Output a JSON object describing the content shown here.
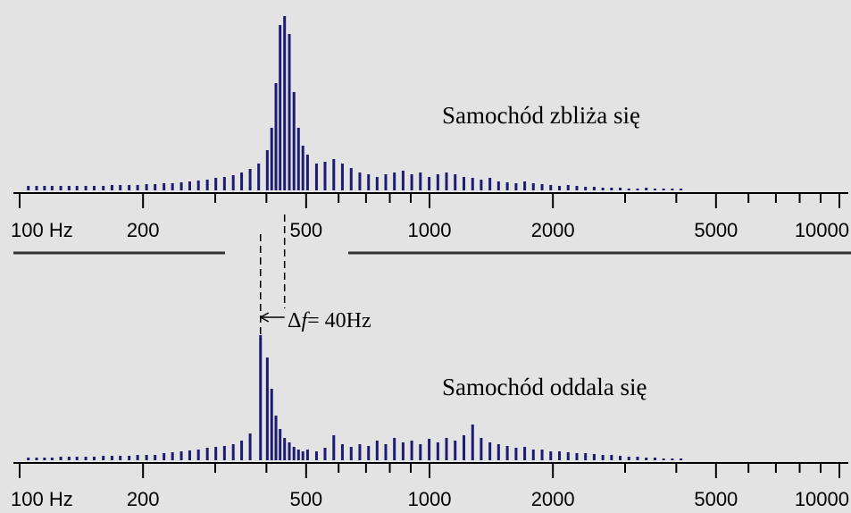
{
  "chart_data": [
    {
      "type": "bar",
      "title": "Samochód zbliża się",
      "color": "#1c1c72",
      "xscale": "log",
      "xlim": [
        100,
        10000
      ],
      "ylim": [
        0,
        200
      ],
      "xticks": [
        {
          "value": 100,
          "label": "100 Hz"
        },
        200,
        500,
        1000,
        2000,
        5000,
        10000
      ],
      "xminorticks": [
        300,
        400,
        600,
        700,
        800,
        900,
        3000,
        4000,
        6000,
        7000,
        8000,
        9000
      ],
      "x": [
        105,
        110,
        115,
        120,
        126,
        132,
        138,
        145,
        152,
        160,
        168,
        176,
        185,
        194,
        204,
        214,
        225,
        236,
        248,
        260,
        273,
        287,
        301,
        316,
        332,
        348,
        365,
        383,
        402,
        412,
        422,
        432,
        443,
        455,
        467,
        479,
        491,
        504,
        530,
        556,
        584,
        613,
        644,
        676,
        710,
        745,
        782,
        821,
        862,
        905,
        950,
        998,
        1048,
        1100,
        1155,
        1213,
        1274,
        1337,
        1404,
        1474,
        1548,
        1626,
        1707,
        1792,
        1882,
        1976,
        2075,
        2179,
        2288,
        2402,
        2522,
        2648,
        2780,
        2919,
        3065,
        3218,
        3379,
        3548,
        3725,
        3911,
        4107
      ],
      "values": [
        5,
        5,
        5,
        5,
        5,
        5,
        5,
        5,
        5,
        5,
        6,
        6,
        6,
        6,
        7,
        7,
        8,
        8,
        9,
        10,
        11,
        12,
        14,
        15,
        17,
        20,
        24,
        30,
        45,
        70,
        120,
        185,
        195,
        175,
        110,
        70,
        50,
        40,
        30,
        32,
        35,
        30,
        25,
        20,
        18,
        15,
        18,
        20,
        22,
        18,
        20,
        15,
        18,
        20,
        18,
        15,
        14,
        12,
        14,
        10,
        9,
        8,
        10,
        8,
        7,
        6,
        5,
        6,
        5,
        4,
        4,
        3,
        3,
        3,
        2,
        2,
        3,
        2,
        2,
        2,
        2
      ]
    },
    {
      "type": "bar",
      "title": "Samochód oddala się",
      "color": "#1c1c72",
      "xscale": "log",
      "xlim": [
        100,
        10000
      ],
      "ylim": [
        0,
        200
      ],
      "xticks": [
        {
          "value": 100,
          "label": "100 Hz"
        },
        200,
        500,
        1000,
        2000,
        5000,
        10000
      ],
      "xminorticks": [
        300,
        400,
        600,
        700,
        800,
        900,
        3000,
        4000,
        6000,
        7000,
        8000,
        9000
      ],
      "x": [
        105,
        110,
        115,
        120,
        126,
        132,
        138,
        145,
        152,
        160,
        168,
        176,
        185,
        194,
        204,
        214,
        225,
        236,
        248,
        260,
        273,
        287,
        301,
        316,
        332,
        348,
        365,
        387,
        402,
        412,
        422,
        432,
        443,
        455,
        467,
        479,
        491,
        504,
        530,
        556,
        584,
        613,
        644,
        676,
        710,
        745,
        782,
        821,
        862,
        905,
        950,
        998,
        1048,
        1100,
        1155,
        1213,
        1274,
        1337,
        1404,
        1474,
        1548,
        1626,
        1707,
        1792,
        1882,
        1976,
        2075,
        2179,
        2288,
        2402,
        2522,
        2648,
        2780,
        2919,
        3065,
        3218,
        3379,
        3548,
        3725,
        3911,
        4107
      ],
      "values": [
        3,
        3,
        3,
        3,
        4,
        4,
        4,
        4,
        4,
        5,
        5,
        5,
        5,
        6,
        6,
        6,
        8,
        9,
        10,
        11,
        12,
        14,
        15,
        16,
        18,
        22,
        30,
        140,
        115,
        80,
        50,
        35,
        25,
        20,
        15,
        12,
        10,
        12,
        10,
        14,
        28,
        18,
        15,
        18,
        16,
        22,
        18,
        25,
        20,
        22,
        18,
        24,
        20,
        25,
        22,
        28,
        40,
        25,
        20,
        18,
        16,
        14,
        15,
        12,
        12,
        10,
        10,
        9,
        8,
        8,
        7,
        6,
        6,
        5,
        4,
        4,
        3,
        3,
        2,
        2,
        2
      ]
    }
  ],
  "annotation": {
    "delta": "Δ",
    "variable": "f",
    "text": "= 40Hz"
  }
}
